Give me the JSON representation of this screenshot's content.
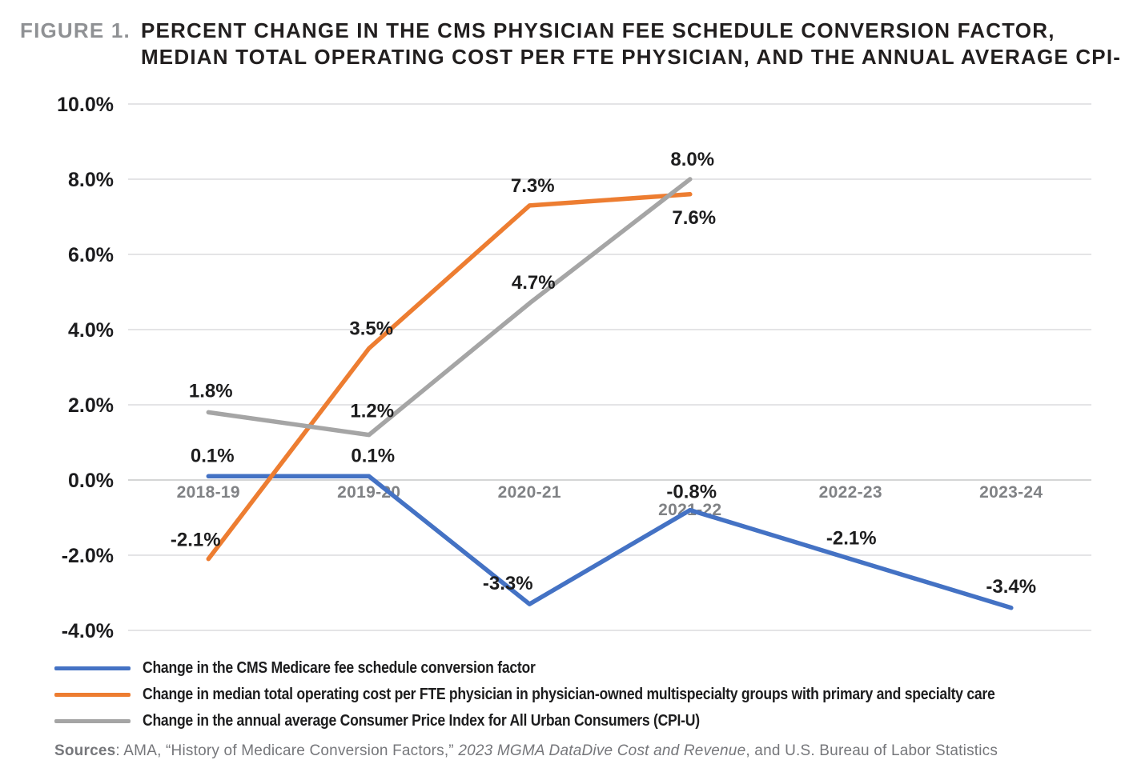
{
  "header": {
    "figure_label": "FIGURE 1.",
    "title_line1": "PERCENT CHANGE IN THE CMS PHYSICIAN FEE SCHEDULE CONVERSION FACTOR,",
    "title_line2": "MEDIAN TOTAL OPERATING COST PER FTE PHYSICIAN, AND THE ANNUAL AVERAGE CPI-U"
  },
  "chart_data": {
    "type": "line",
    "title": "Percent change in the CMS physician fee schedule conversion factor, median total operating cost per FTE physician, and the annual average CPI-U",
    "categories": [
      "2018-19",
      "2019-20",
      "2020-21",
      "2021-22",
      "2022-23",
      "2023-24"
    ],
    "series": [
      {
        "name": "Change in the CMS Medicare fee schedule conversion factor",
        "color": "#4472C4",
        "values": [
          0.1,
          0.1,
          -3.3,
          -0.8,
          -2.1,
          -3.4
        ]
      },
      {
        "name": "Change in median total operating cost per FTE physician in physician-owned multispecialty groups with primary and specialty care",
        "color": "#ED7D31",
        "values": [
          -2.1,
          3.5,
          7.3,
          7.6,
          null,
          null
        ]
      },
      {
        "name": "Change in the annual average Consumer Price Index for All Urban Consumers (CPI-U)",
        "color": "#A5A5A5",
        "values": [
          1.8,
          1.2,
          4.7,
          8.0,
          null,
          null
        ]
      }
    ],
    "ylim": [
      -4,
      10
    ],
    "ytick_step": 2,
    "ytick_labels": [
      "10.0%",
      "8.0%",
      "6.0%",
      "4.0%",
      "2.0%",
      "0.0%",
      "-2.0%",
      "-4.0%"
    ],
    "grid": true,
    "legend_position": "bottom",
    "value_label_format": "0.0%"
  },
  "sources": {
    "label": "Sources",
    "text1": ": AMA, “History of Medicare Conversion Factors,” ",
    "italic": "2023 MGMA DataDive Cost and Revenue",
    "text2": ", and U.S. Bureau of Labor Statistics"
  }
}
